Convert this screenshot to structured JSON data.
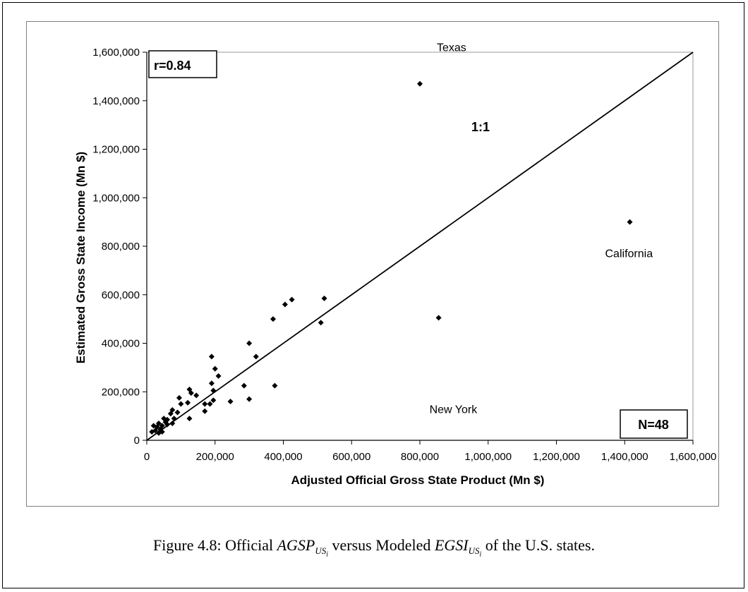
{
  "chart_data": {
    "type": "scatter",
    "xlabel": "Adjusted Official Gross State Product (Mn $)",
    "ylabel": "Estimated Gross State Income (Mn $)",
    "xlim": [
      0,
      1600000
    ],
    "ylim": [
      0,
      1600000
    ],
    "x_ticks": [
      "0",
      "200,000",
      "400,000",
      "600,000",
      "800,000",
      "1,000,000",
      "1,200,000",
      "1,400,000",
      "1,600,000"
    ],
    "y_ticks": [
      "0",
      "200,000",
      "400,000",
      "600,000",
      "800,000",
      "1,000,000",
      "1,200,000",
      "1,400,000",
      "1,600,000"
    ],
    "grid": false,
    "reference_line": {
      "label": "1:1",
      "from": [
        0,
        0
      ],
      "to": [
        1600000,
        1600000
      ]
    },
    "annotations": {
      "r": "r=0.84",
      "n": "N=48"
    },
    "labeled_points": [
      {
        "label": "Texas",
        "x": 800000,
        "y": 1470000
      },
      {
        "label": "California",
        "x": 1415000,
        "y": 900000
      },
      {
        "label": "New York",
        "x": 855000,
        "y": 505000
      }
    ],
    "points": [
      [
        800000,
        1470000
      ],
      [
        1415000,
        900000
      ],
      [
        855000,
        505000
      ],
      [
        520000,
        585000
      ],
      [
        425000,
        580000
      ],
      [
        405000,
        560000
      ],
      [
        510000,
        485000
      ],
      [
        370000,
        500000
      ],
      [
        300000,
        400000
      ],
      [
        320000,
        345000
      ],
      [
        375000,
        225000
      ],
      [
        300000,
        170000
      ],
      [
        285000,
        225000
      ],
      [
        245000,
        160000
      ],
      [
        190000,
        345000
      ],
      [
        200000,
        295000
      ],
      [
        210000,
        265000
      ],
      [
        190000,
        235000
      ],
      [
        195000,
        205000
      ],
      [
        195000,
        165000
      ],
      [
        185000,
        150000
      ],
      [
        170000,
        150000
      ],
      [
        170000,
        120000
      ],
      [
        145000,
        185000
      ],
      [
        125000,
        210000
      ],
      [
        130000,
        195000
      ],
      [
        120000,
        155000
      ],
      [
        125000,
        90000
      ],
      [
        95000,
        175000
      ],
      [
        100000,
        150000
      ],
      [
        90000,
        115000
      ],
      [
        75000,
        125000
      ],
      [
        70000,
        110000
      ],
      [
        80000,
        90000
      ],
      [
        75000,
        70000
      ],
      [
        60000,
        85000
      ],
      [
        50000,
        90000
      ],
      [
        55000,
        75000
      ],
      [
        45000,
        60000
      ],
      [
        40000,
        45000
      ],
      [
        35000,
        70000
      ],
      [
        30000,
        55000
      ],
      [
        25000,
        40000
      ],
      [
        20000,
        60000
      ],
      [
        15000,
        35000
      ],
      [
        45000,
        35000
      ],
      [
        60000,
        65000
      ],
      [
        35000,
        30000
      ]
    ]
  },
  "caption": {
    "prefix": "Figure 4.8: Official ",
    "var1": "AGSP",
    "middle": " versus Modeled ",
    "var2": "EGSI",
    "sub": "US",
    "subsub": "i",
    "suffix": " of the U.S. states."
  }
}
